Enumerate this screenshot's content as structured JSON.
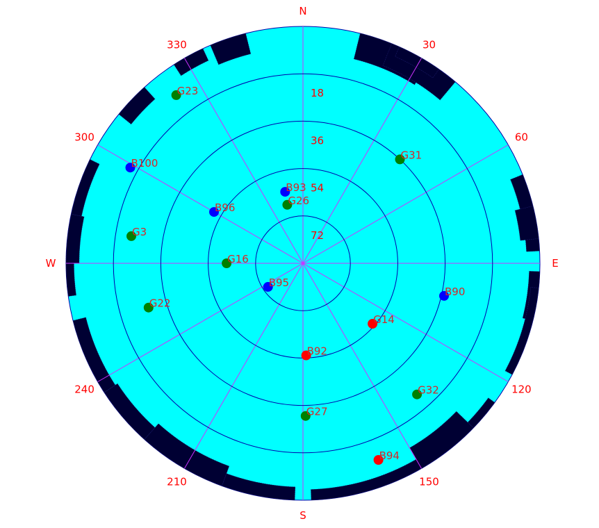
{
  "chart_data": {
    "type": "scatter",
    "projection": "polar-skyplot",
    "colors": {
      "background": "#00ffff",
      "circles": "#0000aa",
      "spokes": "#cc33ff",
      "labels": "#ff0000",
      "sat_label": "#d62728",
      "obstruction": "#000033",
      "status_green": "#008000",
      "status_blue": "#0000ff",
      "status_red": "#ff0000"
    },
    "azimuth_labels": [
      {
        "az": 0,
        "text": "N"
      },
      {
        "az": 30,
        "text": "30"
      },
      {
        "az": 60,
        "text": "60"
      },
      {
        "az": 90,
        "text": "E"
      },
      {
        "az": 120,
        "text": "120"
      },
      {
        "az": 150,
        "text": "150"
      },
      {
        "az": 180,
        "text": "S"
      },
      {
        "az": 210,
        "text": "210"
      },
      {
        "az": 240,
        "text": "240"
      },
      {
        "az": 270,
        "text": "W"
      },
      {
        "az": 300,
        "text": "300"
      },
      {
        "az": 330,
        "text": "330"
      }
    ],
    "elevation_rings": [
      18,
      36,
      54,
      72
    ],
    "elevation_labels": [
      "18",
      "36",
      "54",
      "72"
    ],
    "satellites": [
      {
        "name": "G23",
        "az": 323,
        "el": 10,
        "color": "green"
      },
      {
        "name": "B100",
        "az": 299,
        "el": 15,
        "color": "blue"
      },
      {
        "name": "G31",
        "az": 43,
        "el": 36,
        "color": "green"
      },
      {
        "name": "B93",
        "az": 346,
        "el": 62,
        "color": "blue"
      },
      {
        "name": "G26",
        "az": 345,
        "el": 67,
        "color": "green"
      },
      {
        "name": "B96",
        "az": 300,
        "el": 51,
        "color": "blue"
      },
      {
        "name": "G3",
        "az": 279,
        "el": 24,
        "color": "green"
      },
      {
        "name": "G16",
        "az": 270,
        "el": 61,
        "color": "green"
      },
      {
        "name": "B95",
        "az": 236,
        "el": 74,
        "color": "blue"
      },
      {
        "name": "G22",
        "az": 254,
        "el": 29,
        "color": "green"
      },
      {
        "name": "B90",
        "az": 103,
        "el": 35,
        "color": "blue"
      },
      {
        "name": "G14",
        "az": 131,
        "el": 55,
        "color": "red"
      },
      {
        "name": "B92",
        "az": 178,
        "el": 55,
        "color": "red"
      },
      {
        "name": "G32",
        "az": 139,
        "el": 24,
        "color": "green"
      },
      {
        "name": "G27",
        "az": 179,
        "el": 32,
        "color": "green"
      },
      {
        "name": "B94",
        "az": 159,
        "el": 10,
        "color": "red"
      }
    ],
    "obstruction_mask": [
      {
        "az_start": 327,
        "az_end": 335,
        "el_low": 0,
        "el_high": 5
      },
      {
        "az_start": 337,
        "az_end": 346,
        "el_low": 0,
        "el_high": 8
      },
      {
        "az_start": 14,
        "az_end": 22,
        "el_low": 0,
        "el_high": 6
      },
      {
        "az_start": 14,
        "az_end": 32,
        "el_low": 0,
        "el_high": 10
      },
      {
        "az_start": 22,
        "az_end": 40,
        "el_low": 0,
        "el_high": 9
      },
      {
        "az_start": 24,
        "az_end": 35,
        "el_low": 0,
        "el_high": 4
      },
      {
        "az_start": 68,
        "az_end": 87,
        "el_low": 0,
        "el_high": 5
      },
      {
        "az_start": 76,
        "az_end": 84,
        "el_low": 0,
        "el_high": 7
      },
      {
        "az_start": 92,
        "az_end": 104,
        "el_low": 0,
        "el_high": 4
      },
      {
        "az_start": 96,
        "az_end": 118,
        "el_low": 0,
        "el_high": 3
      },
      {
        "az_start": 126,
        "az_end": 134,
        "el_low": 0,
        "el_high": 3
      },
      {
        "az_start": 134,
        "az_end": 150,
        "el_low": 0,
        "el_high": 9
      },
      {
        "az_start": 150,
        "az_end": 178,
        "el_low": 0,
        "el_high": 4
      },
      {
        "az_start": 182,
        "az_end": 200,
        "el_low": 0,
        "el_high": 5
      },
      {
        "az_start": 200,
        "az_end": 222,
        "el_low": 0,
        "el_high": 8
      },
      {
        "az_start": 222,
        "az_end": 237,
        "el_low": 0,
        "el_high": 6
      },
      {
        "az_start": 237,
        "az_end": 256,
        "el_low": 0,
        "el_high": 5
      },
      {
        "az_start": 262,
        "az_end": 270,
        "el_low": 0,
        "el_high": 3
      },
      {
        "az_start": 270,
        "az_end": 282,
        "el_low": 0,
        "el_high": 5
      },
      {
        "az_start": 282,
        "az_end": 296,
        "el_low": 0,
        "el_high": 4
      },
      {
        "az_start": 309,
        "az_end": 318,
        "el_low": 0,
        "el_high": 6
      }
    ]
  }
}
